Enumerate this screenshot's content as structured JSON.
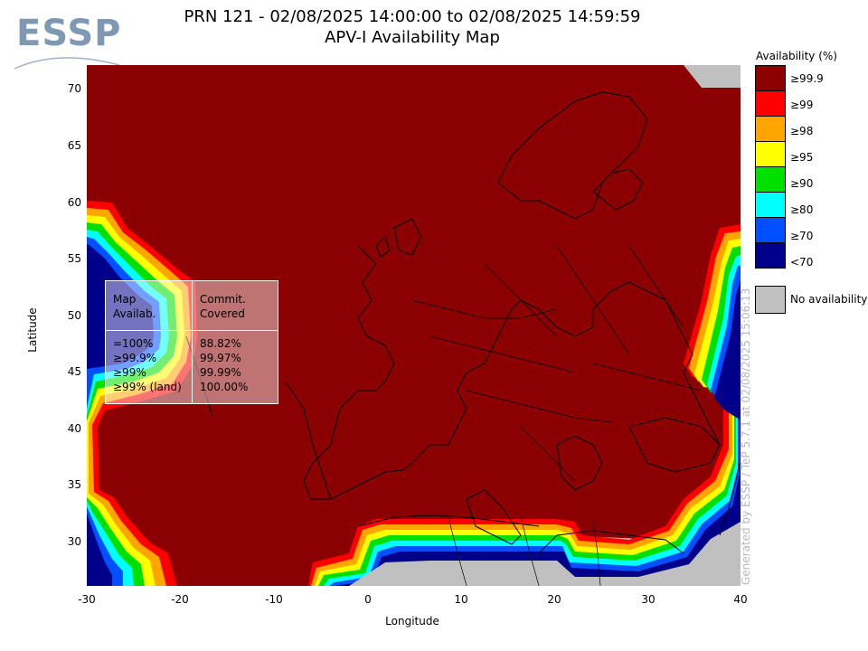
{
  "logo": {
    "text": "ESSP"
  },
  "title": {
    "line1": "PRN 121 - 02/08/2025 14:00:00 to 02/08/2025 14:59:59",
    "line2": "APV-I Availability Map"
  },
  "axes": {
    "xlabel": "Longitude",
    "ylabel": "Latitude",
    "xticks": [
      "-30",
      "-20",
      "-10",
      "0",
      "10",
      "20",
      "30",
      "40"
    ],
    "yticks": [
      "70",
      "65",
      "60",
      "55",
      "50",
      "45",
      "40",
      "35",
      "30"
    ]
  },
  "legend": {
    "title": "Availability (%)",
    "items": [
      {
        "label": "≥99.9",
        "color": "#8b0000"
      },
      {
        "label": "≥99",
        "color": "#ff0000"
      },
      {
        "label": "≥98",
        "color": "#ffa500"
      },
      {
        "label": "≥95",
        "color": "#ffff00"
      },
      {
        "label": "≥90",
        "color": "#00e000"
      },
      {
        "label": "≥80",
        "color": "#00ffff"
      },
      {
        "label": "≥70",
        "color": "#0050ff"
      },
      {
        "label": "<70",
        "color": "#00008b"
      }
    ],
    "no_availability": {
      "label": "No availability",
      "color": "#c0c0c0"
    }
  },
  "stats": {
    "header_left": [
      "Map",
      "Availab."
    ],
    "header_right": [
      "Commit.",
      "Covered"
    ],
    "rows_left": [
      "=100%",
      "≥99.9%",
      "≥99%",
      "≥99% (land)"
    ],
    "rows_right": [
      "88.82%",
      "99.97%",
      "99.99%",
      "100.00%"
    ]
  },
  "credit": "Generated by ESSP / TeP 5.7.1 at 02/08/2025 15:06:13"
}
